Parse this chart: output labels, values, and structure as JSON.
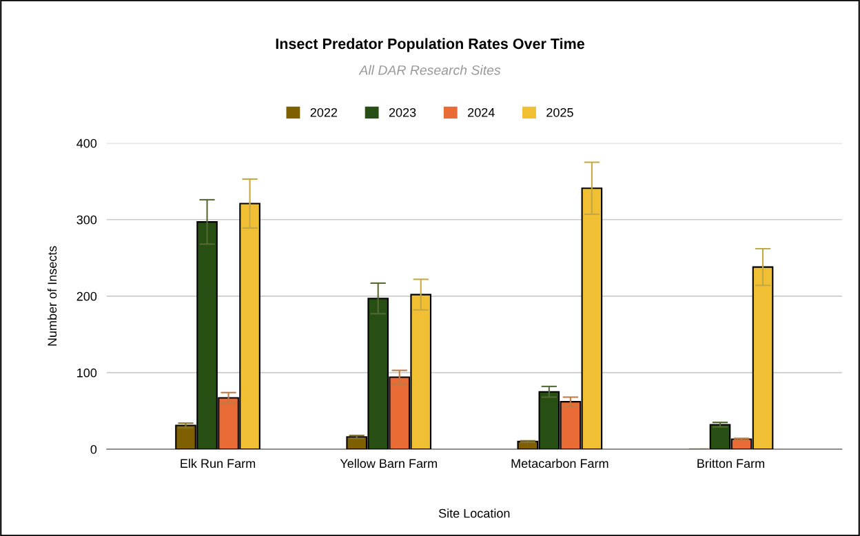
{
  "chart_data": {
    "type": "bar",
    "title": "Insect Predator Population Rates Over Time",
    "subtitle": "All DAR Research Sites",
    "xlabel": "Site Location",
    "ylabel": "Number of Insects",
    "categories": [
      "Elk Run Farm",
      "Yellow Barn Farm",
      "Metacarbon Farm",
      "Britton Farm"
    ],
    "series": [
      {
        "name": "2022",
        "color": "#7f6000",
        "values": [
          31,
          16,
          10,
          1
        ],
        "errors": [
          3,
          2,
          1,
          null
        ]
      },
      {
        "name": "2023",
        "color": "#274e13",
        "values": [
          297,
          197,
          75,
          32
        ],
        "errors": [
          29,
          20,
          7,
          3
        ]
      },
      {
        "name": "2024",
        "color": "#e96b35",
        "values": [
          67,
          94,
          62,
          13
        ],
        "errors": [
          7,
          9,
          6,
          1
        ]
      },
      {
        "name": "2025",
        "color": "#f0bf33",
        "values": [
          321,
          202,
          341,
          238
        ],
        "errors": [
          32,
          20,
          34,
          24
        ]
      }
    ],
    "ylim": [
      0,
      400
    ],
    "yticks": [
      0,
      100,
      200,
      300,
      400
    ],
    "grid": "y",
    "legend": "top"
  }
}
